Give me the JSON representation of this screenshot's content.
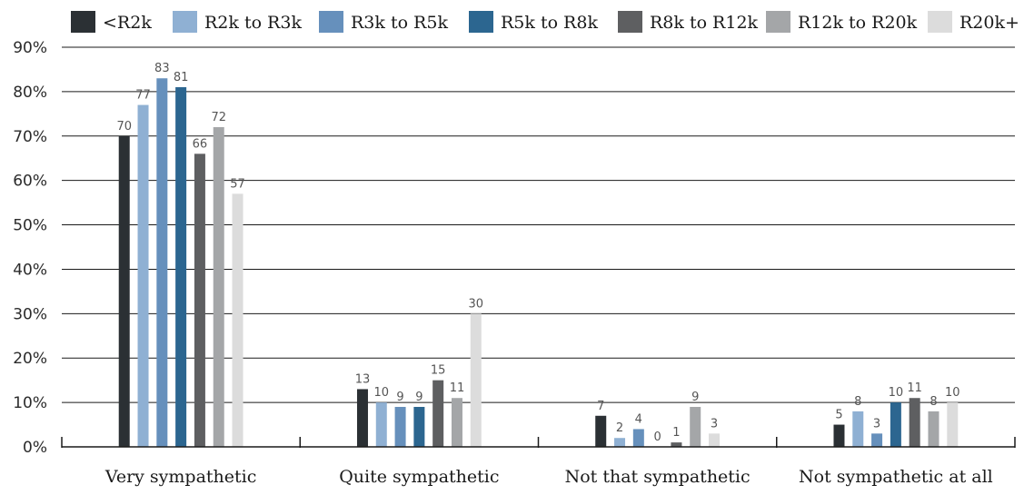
{
  "chart_data": {
    "type": "bar",
    "title": "",
    "xlabel": "",
    "ylabel": "",
    "ylim": [
      0,
      90
    ],
    "y_ticks": [
      "0%",
      "10%",
      "20%",
      "30%",
      "40%",
      "50%",
      "60%",
      "70%",
      "80%",
      "90%"
    ],
    "grid": true,
    "legend_position": "top",
    "categories": [
      "Very sympathetic",
      "Quite sympathetic",
      "Not that sympathetic",
      "Not sympathetic at all"
    ],
    "series": [
      {
        "name": "<R2k",
        "color": "#2b3034",
        "values": [
          70,
          13,
          7,
          5
        ]
      },
      {
        "name": "R2k to R3k",
        "color": "#8fb0d3",
        "values": [
          77,
          10,
          2,
          8
        ]
      },
      {
        "name": "R3k to R5k",
        "color": "#6690bc",
        "values": [
          83,
          9,
          4,
          3
        ]
      },
      {
        "name": "R5k to R8k",
        "color": "#2c6690",
        "values": [
          81,
          9,
          0,
          10
        ]
      },
      {
        "name": "R8k to R12k",
        "color": "#5e5f61",
        "values": [
          66,
          15,
          1,
          11
        ]
      },
      {
        "name": "R12k to R20k",
        "color": "#a4a6a8",
        "values": [
          72,
          11,
          9,
          8
        ]
      },
      {
        "name": "R20k+",
        "color": "#dcdcdc",
        "values": [
          57,
          30,
          3,
          10
        ]
      }
    ]
  }
}
